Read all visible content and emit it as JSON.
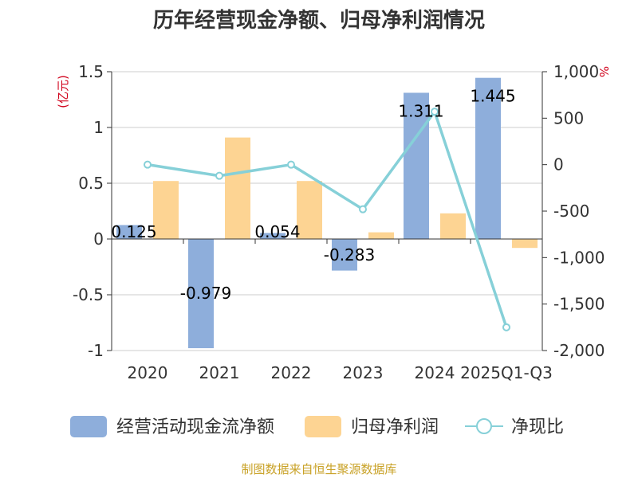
{
  "chart_data": {
    "type": "bar",
    "title": "历年经营现金净额、归母净利润情况",
    "categories": [
      "2020",
      "2021",
      "2022",
      "2023",
      "2024",
      "2025Q1-Q3"
    ],
    "series": [
      {
        "name": "经营活动现金流净额",
        "type": "bar",
        "axis": "left",
        "color": "#8eaedb",
        "values": [
          0.125,
          -0.979,
          0.054,
          -0.283,
          1.311,
          1.445
        ],
        "labels": [
          "0.125",
          "-0.979",
          "0.054",
          "-0.283",
          "1.311",
          "1.445"
        ]
      },
      {
        "name": "归母净利润",
        "type": "bar",
        "axis": "left",
        "color": "#fdd493",
        "values": [
          0.52,
          0.91,
          0.52,
          0.06,
          0.23,
          -0.08
        ]
      },
      {
        "name": "净现比",
        "type": "line",
        "axis": "right",
        "color": "#86d0d8",
        "values": [
          0,
          -120,
          0,
          -480,
          570,
          -1750
        ]
      }
    ],
    "left_axis": {
      "unit": "(亿元)",
      "ylim": [
        -1,
        1.5
      ],
      "ticks": [
        1.5,
        1,
        0.5,
        0,
        -0.5,
        -1
      ],
      "tick_labels": [
        "1.5",
        "1",
        "0.5",
        "0",
        "-0.5",
        "-1"
      ]
    },
    "right_axis": {
      "unit": "%",
      "ylim": [
        -2000,
        1000
      ],
      "ticks": [
        1000,
        500,
        0,
        -500,
        -1000,
        -1500,
        -2000
      ],
      "tick_labels": [
        "1,000",
        "500",
        "0",
        "-500",
        "-1,000",
        "-1,500",
        "-2,000"
      ]
    },
    "grid": true,
    "legend_position": "bottom"
  },
  "source": "制图数据来自恒生聚源数据库"
}
